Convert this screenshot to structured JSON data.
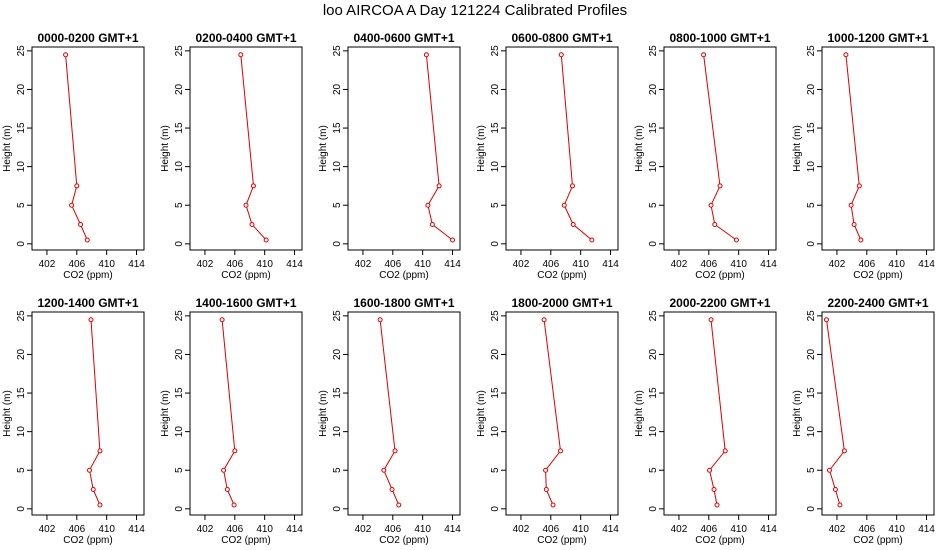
{
  "figure_title": "loo AIRCOA A  Day 121224  Calibrated Profiles",
  "chart_data": [
    {
      "type": "line",
      "title": "0000-0200 GMT+1",
      "xlabel": "CO2 (ppm)",
      "ylabel": "Height (m)",
      "xlim": [
        400,
        415
      ],
      "ylim": [
        -0.8,
        25.5
      ],
      "xticks": [
        402,
        406,
        410,
        414
      ],
      "yticks": [
        0,
        5,
        10,
        15,
        20,
        25
      ],
      "color": "#e00000",
      "x": [
        407.4,
        406.5,
        405.3,
        406.0,
        404.5
      ],
      "y": [
        0.5,
        2.5,
        5,
        7.5,
        24.5
      ]
    },
    {
      "type": "line",
      "title": "0200-0400 GMT+1",
      "xlabel": "CO2 (ppm)",
      "ylabel": "Height (m)",
      "xlim": [
        400,
        415
      ],
      "ylim": [
        -0.8,
        25.5
      ],
      "xticks": [
        402,
        406,
        410,
        414
      ],
      "yticks": [
        0,
        5,
        10,
        15,
        20,
        25
      ],
      "color": "#e00000",
      "x": [
        410.2,
        408.3,
        407.5,
        408.5,
        406.8
      ],
      "y": [
        0.5,
        2.5,
        5,
        7.5,
        24.5
      ]
    },
    {
      "type": "line",
      "title": "0400-0600 GMT+1",
      "xlabel": "CO2 (ppm)",
      "ylabel": "Height (m)",
      "xlim": [
        400,
        415
      ],
      "ylim": [
        -0.8,
        25.5
      ],
      "xticks": [
        402,
        406,
        410,
        414
      ],
      "yticks": [
        0,
        5,
        10,
        15,
        20,
        25
      ],
      "color": "#e00000",
      "x": [
        414.0,
        411.3,
        410.7,
        412.2,
        410.5
      ],
      "y": [
        0.5,
        2.5,
        5,
        7.5,
        24.5
      ]
    },
    {
      "type": "line",
      "title": "0600-0800 GMT+1",
      "xlabel": "CO2 (ppm)",
      "ylabel": "Height (m)",
      "xlim": [
        400,
        415
      ],
      "ylim": [
        -0.8,
        25.5
      ],
      "xticks": [
        402,
        406,
        410,
        414
      ],
      "yticks": [
        0,
        5,
        10,
        15,
        20,
        25
      ],
      "color": "#e00000",
      "x": [
        411.5,
        409.0,
        407.8,
        408.9,
        407.4
      ],
      "y": [
        0.5,
        2.5,
        5,
        7.5,
        24.5
      ]
    },
    {
      "type": "line",
      "title": "0800-1000 GMT+1",
      "xlabel": "CO2 (ppm)",
      "ylabel": "Height (m)",
      "xlim": [
        400,
        415
      ],
      "ylim": [
        -0.8,
        25.5
      ],
      "xticks": [
        402,
        406,
        410,
        414
      ],
      "yticks": [
        0,
        5,
        10,
        15,
        20,
        25
      ],
      "color": "#e00000",
      "x": [
        409.7,
        406.8,
        406.3,
        407.5,
        405.3
      ],
      "y": [
        0.5,
        2.5,
        5,
        7.5,
        24.5
      ]
    },
    {
      "type": "line",
      "title": "1000-1200 GMT+1",
      "xlabel": "CO2 (ppm)",
      "ylabel": "Height (m)",
      "xlim": [
        400,
        415
      ],
      "ylim": [
        -0.8,
        25.5
      ],
      "xticks": [
        402,
        406,
        410,
        414
      ],
      "yticks": [
        0,
        5,
        10,
        15,
        20,
        25
      ],
      "color": "#e00000",
      "x": [
        405.2,
        404.3,
        403.9,
        405.0,
        403.2
      ],
      "y": [
        0.5,
        2.5,
        5,
        7.5,
        24.5
      ]
    },
    {
      "type": "line",
      "title": "1200-1400 GMT+1",
      "xlabel": "CO2 (ppm)",
      "ylabel": "Height (m)",
      "xlim": [
        400,
        415
      ],
      "ylim": [
        -0.8,
        25.5
      ],
      "xticks": [
        402,
        406,
        410,
        414
      ],
      "yticks": [
        0,
        5,
        10,
        15,
        20,
        25
      ],
      "color": "#e00000",
      "x": [
        409.1,
        408.2,
        407.7,
        409.1,
        407.9
      ],
      "y": [
        0.5,
        2.5,
        5,
        7.5,
        24.5
      ]
    },
    {
      "type": "line",
      "title": "1400-1600 GMT+1",
      "xlabel": "CO2 (ppm)",
      "ylabel": "Height (m)",
      "xlim": [
        400,
        415
      ],
      "ylim": [
        -0.8,
        25.5
      ],
      "xticks": [
        402,
        406,
        410,
        414
      ],
      "yticks": [
        0,
        5,
        10,
        15,
        20,
        25
      ],
      "color": "#e00000",
      "x": [
        405.9,
        405.0,
        404.5,
        406.0,
        404.3
      ],
      "y": [
        0.5,
        2.5,
        5,
        7.5,
        24.5
      ]
    },
    {
      "type": "line",
      "title": "1600-1800 GMT+1",
      "xlabel": "CO2 (ppm)",
      "ylabel": "Height (m)",
      "xlim": [
        400,
        415
      ],
      "ylim": [
        -0.8,
        25.5
      ],
      "xticks": [
        402,
        406,
        410,
        414
      ],
      "yticks": [
        0,
        5,
        10,
        15,
        20,
        25
      ],
      "color": "#e00000",
      "x": [
        406.8,
        405.9,
        404.8,
        406.3,
        404.3
      ],
      "y": [
        0.5,
        2.5,
        5,
        7.5,
        24.5
      ]
    },
    {
      "type": "line",
      "title": "1800-2000 GMT+1",
      "xlabel": "CO2 (ppm)",
      "ylabel": "Height (m)",
      "xlim": [
        400,
        415
      ],
      "ylim": [
        -0.8,
        25.5
      ],
      "xticks": [
        402,
        406,
        410,
        414
      ],
      "yticks": [
        0,
        5,
        10,
        15,
        20,
        25
      ],
      "color": "#e00000",
      "x": [
        406.3,
        405.4,
        405.3,
        407.3,
        405.1
      ],
      "y": [
        0.5,
        2.5,
        5,
        7.5,
        24.5
      ]
    },
    {
      "type": "line",
      "title": "2000-2200 GMT+1",
      "xlabel": "CO2 (ppm)",
      "ylabel": "Height (m)",
      "xlim": [
        400,
        415
      ],
      "ylim": [
        -0.8,
        25.5
      ],
      "xticks": [
        402,
        406,
        410,
        414
      ],
      "yticks": [
        0,
        5,
        10,
        15,
        20,
        25
      ],
      "color": "#e00000",
      "x": [
        407.1,
        406.7,
        406.1,
        408.2,
        406.3
      ],
      "y": [
        0.5,
        2.5,
        5,
        7.5,
        24.5
      ]
    },
    {
      "type": "line",
      "title": "2200-2400 GMT+1",
      "xlabel": "CO2 (ppm)",
      "ylabel": "Height (m)",
      "xlim": [
        400,
        415
      ],
      "ylim": [
        -0.8,
        25.5
      ],
      "xticks": [
        402,
        406,
        410,
        414
      ],
      "yticks": [
        0,
        5,
        10,
        15,
        20,
        25
      ],
      "color": "#e00000",
      "x": [
        402.4,
        401.8,
        401.0,
        403.0,
        400.6
      ],
      "y": [
        0.5,
        2.5,
        5,
        7.5,
        24.5
      ]
    }
  ]
}
